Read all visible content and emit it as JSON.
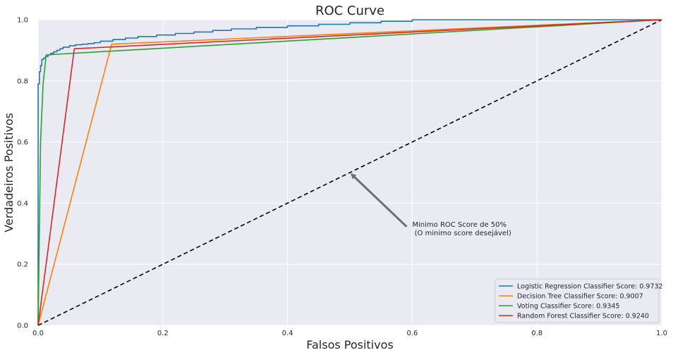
{
  "chart_data": {
    "type": "line",
    "title": "ROC Curve",
    "xlabel": "Falsos Positivos",
    "ylabel": "Verdadeiros Positivos",
    "xlim": [
      0,
      1
    ],
    "ylim": [
      0,
      1
    ],
    "xticks": [
      "0.0",
      "0.2",
      "0.4",
      "0.6",
      "0.8",
      "1.0"
    ],
    "yticks": [
      "0.0",
      "0.2",
      "0.4",
      "0.6",
      "0.8",
      "1.0"
    ],
    "grid": true,
    "legend_position": "bottom-right",
    "colors": {
      "background": "#eaeaf2",
      "grid": "#ffffff",
      "logistic": "#1f77b4",
      "tree": "#ff7f0e",
      "voting": "#2ca02c",
      "forest": "#d62728",
      "reference": "#000000",
      "arrow": "#6e6e6e"
    },
    "series": [
      {
        "name": "Logistic Regression Classifier Score: 0.9732",
        "color": "#1f77b4",
        "x": [
          0,
          0,
          0.002,
          0.002,
          0.004,
          0.004,
          0.006,
          0.006,
          0.009,
          0.009,
          0.012,
          0.012,
          0.016,
          0.016,
          0.02,
          0.02,
          0.025,
          0.025,
          0.03,
          0.03,
          0.035,
          0.035,
          0.04,
          0.04,
          0.05,
          0.05,
          0.06,
          0.06,
          0.07,
          0.07,
          0.08,
          0.08,
          0.09,
          0.09,
          0.1,
          0.1,
          0.12,
          0.12,
          0.14,
          0.14,
          0.16,
          0.16,
          0.19,
          0.19,
          0.22,
          0.22,
          0.25,
          0.25,
          0.28,
          0.28,
          0.31,
          0.31,
          0.35,
          0.35,
          0.4,
          0.4,
          0.45,
          0.45,
          0.5,
          0.5,
          0.55,
          0.55,
          0.6,
          0.6,
          0.66,
          1.0
        ],
        "y": [
          0,
          0.79,
          0.79,
          0.83,
          0.83,
          0.85,
          0.85,
          0.87,
          0.87,
          0.875,
          0.875,
          0.88,
          0.88,
          0.885,
          0.885,
          0.89,
          0.89,
          0.895,
          0.895,
          0.9,
          0.9,
          0.905,
          0.905,
          0.91,
          0.91,
          0.915,
          0.915,
          0.918,
          0.918,
          0.92,
          0.92,
          0.922,
          0.922,
          0.925,
          0.925,
          0.93,
          0.93,
          0.935,
          0.935,
          0.94,
          0.94,
          0.945,
          0.945,
          0.95,
          0.95,
          0.955,
          0.955,
          0.96,
          0.96,
          0.965,
          0.965,
          0.97,
          0.97,
          0.975,
          0.975,
          0.98,
          0.98,
          0.985,
          0.985,
          0.99,
          0.99,
          0.995,
          0.995,
          1.0,
          1.0,
          1.0
        ]
      },
      {
        "name": "Decision Tree Classifier Score: 0.9007",
        "color": "#ff7f0e",
        "x": [
          0,
          0.118,
          1.0
        ],
        "y": [
          0,
          0.92,
          1.0
        ]
      },
      {
        "name": "Voting Classifier Score: 0.9345",
        "color": "#2ca02c",
        "x": [
          0,
          0.004,
          0.008,
          0.013,
          0.013,
          0.03,
          1.0
        ],
        "y": [
          0,
          0.6,
          0.79,
          0.885,
          0.885,
          0.887,
          1.0
        ]
      },
      {
        "name": "Random Forest Classifier Score: 0.9240",
        "color": "#d62728",
        "x": [
          0,
          0.058,
          1.0
        ],
        "y": [
          0,
          0.905,
          1.0
        ]
      }
    ],
    "reference_line": {
      "x": [
        0,
        1
      ],
      "y": [
        0,
        1
      ],
      "style": "dashed",
      "color": "#000000"
    },
    "annotation": {
      "text_line1": "Minimo ROC Score de 50%",
      "text_line2": " (O minimo score desejável)",
      "point": [
        0.5,
        0.5
      ],
      "text_position": [
        0.6,
        0.3
      ]
    }
  }
}
